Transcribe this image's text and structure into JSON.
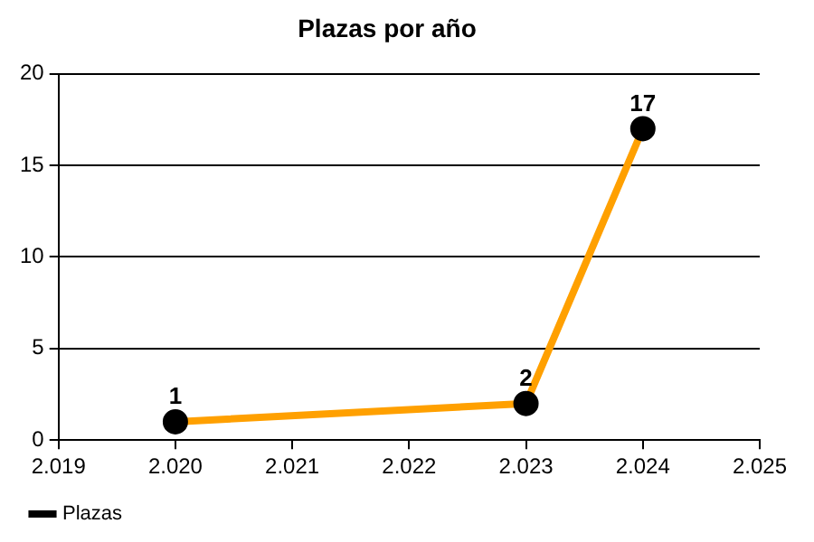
{
  "chart_data": {
    "type": "line",
    "title": "Plazas por año",
    "x": [
      2020,
      2023,
      2024
    ],
    "series": [
      {
        "name": "Plazas",
        "color": "#ffa000",
        "values": [
          1,
          2,
          17
        ]
      }
    ],
    "xlim": [
      2019,
      2025
    ],
    "xticks": [
      {
        "value": 2019,
        "label": "2.019"
      },
      {
        "value": 2020,
        "label": "2.020"
      },
      {
        "value": 2021,
        "label": "2.021"
      },
      {
        "value": 2022,
        "label": "2.022"
      },
      {
        "value": 2023,
        "label": "2.023"
      },
      {
        "value": 2024,
        "label": "2.024"
      },
      {
        "value": 2025,
        "label": "2.025"
      }
    ],
    "ylim": [
      0,
      20
    ],
    "yticks": [
      0,
      5,
      10,
      15,
      20
    ],
    "grid": "y",
    "legend": "bottom left",
    "marker": "circle",
    "line_style": "solid",
    "data_labels": true
  }
}
